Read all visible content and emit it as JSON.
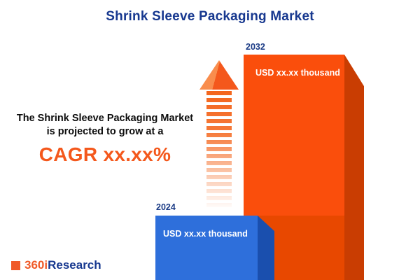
{
  "title": "Shrink Sleeve Packaging Market",
  "annotation": {
    "line1": "The Shrink Sleeve Packaging Market",
    "line2": "is projected to grow at a",
    "cagr": "CAGR xx.xx%"
  },
  "bars": {
    "b2024": {
      "year": "2024",
      "value_label": "USD xx.xx thousand"
    },
    "b2032": {
      "year": "2032",
      "value_label": "USD xx.xx thousand"
    }
  },
  "logo": {
    "part_orange": "360i",
    "part_navy": "Research"
  },
  "colors": {
    "title_navy": "#17388f",
    "cagr_orange": "#f4581c",
    "arrow_orange": "#f4661d",
    "bar2024_front": "#2e6fdb",
    "bar2024_side": "#1a4fae",
    "bar2032_front": "#fa4e0c",
    "bar2032_shaded": "#e84800",
    "bar2032_side": "#c93d02",
    "logo_orange": "#f05a28"
  },
  "chart_data": {
    "type": "bar",
    "title": "Shrink Sleeve Packaging Market",
    "categories": [
      "2024",
      "2032"
    ],
    "value_labels": [
      "USD xx.xx thousand",
      "USD xx.xx thousand"
    ],
    "values_relative_height": [
      0.29,
      1.0
    ],
    "series_colors": [
      "#2e6fdb",
      "#fa4e0c"
    ],
    "annotation": "The Shrink Sleeve Packaging Market is projected to grow at a CAGR xx.xx%",
    "legend": "none",
    "grid": false,
    "style": "3d-extruded-bars with growth arrow"
  }
}
